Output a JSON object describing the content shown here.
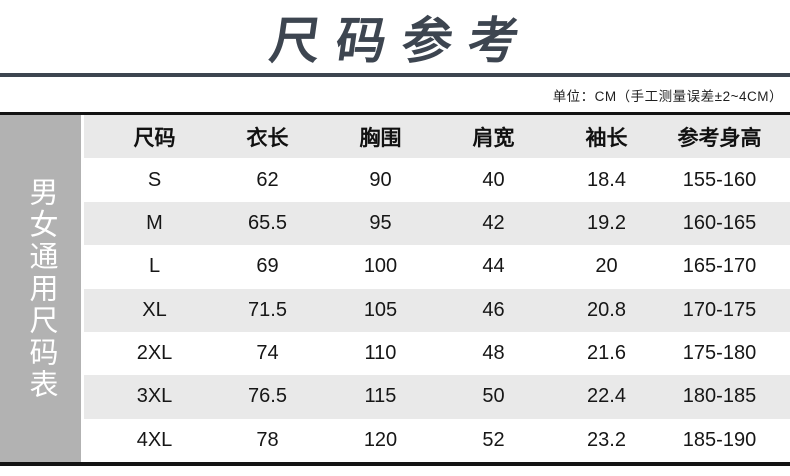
{
  "header": {
    "title": "尺码参考",
    "unit_note": "单位：CM（手工测量误差±2~4CM）"
  },
  "sidebar": {
    "label": "男女通用尺码表"
  },
  "chart_data": {
    "type": "table",
    "title": "尺码参考",
    "unit": "CM",
    "tolerance_note": "手工测量误差±2~4CM",
    "columns": [
      "尺码",
      "衣长",
      "胸围",
      "肩宽",
      "袖长",
      "参考身高"
    ],
    "rows": [
      [
        "S",
        "62",
        "90",
        "40",
        "18.4",
        "155-160"
      ],
      [
        "M",
        "65.5",
        "95",
        "42",
        "19.2",
        "160-165"
      ],
      [
        "L",
        "69",
        "100",
        "44",
        "20",
        "165-170"
      ],
      [
        "XL",
        "71.5",
        "105",
        "46",
        "20.8",
        "170-175"
      ],
      [
        "2XL",
        "74",
        "110",
        "48",
        "21.6",
        "175-180"
      ],
      [
        "3XL",
        "76.5",
        "115",
        "50",
        "22.4",
        "180-185"
      ],
      [
        "4XL",
        "78",
        "120",
        "52",
        "23.2",
        "185-190"
      ]
    ],
    "layout": {
      "alternating_row_shading": true,
      "shaded_rows": [
        "header",
        "M",
        "XL",
        "3XL"
      ]
    }
  },
  "colors": {
    "accent_slate": "#3d4550",
    "sidebar_gray": "#b2b2b2",
    "row_shade_gray": "#e9e9e9",
    "border_black": "#131313",
    "text": "#1a1a1a",
    "sidebar_text": "#ffffff"
  }
}
